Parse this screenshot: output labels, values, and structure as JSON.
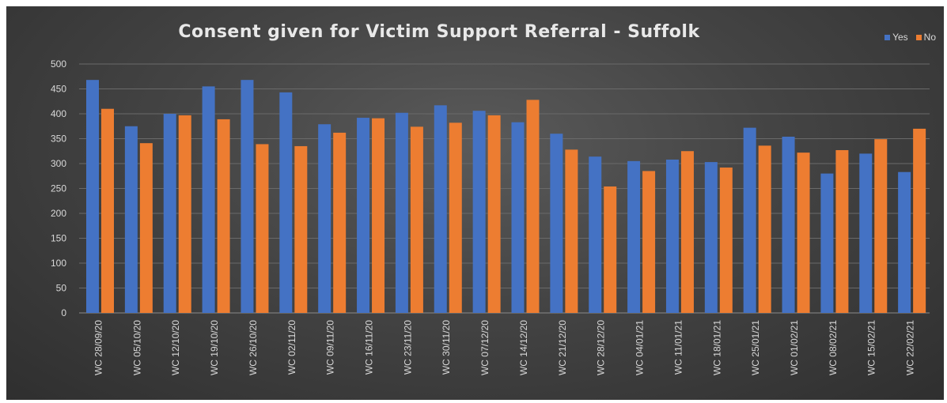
{
  "chart_data": {
    "type": "bar",
    "title": "Consent given for Victim Support Referral - Suffolk",
    "xlabel": "",
    "ylabel": "",
    "ylim": [
      0,
      500
    ],
    "yticks": [
      0,
      50,
      100,
      150,
      200,
      250,
      300,
      350,
      400,
      450,
      500
    ],
    "grid": true,
    "legend_position": "top-right",
    "categories": [
      "WC 28/09/20",
      "WC 05/10/20",
      "WC 12/10/20",
      "WC 19/10/20",
      "WC 26/10/20",
      "WC 02/11/20",
      "WC 09/11/20",
      "WC 16/11/20",
      "WC 23/11/20",
      "WC 30/11/20",
      "WC 07/12/20",
      "WC 14/12/20",
      "WC 21/12/20",
      "WC 28/12/20",
      "WC 04/01/21",
      "WC 11/01/21",
      "WC 18/01/21",
      "WC 25/01/21",
      "WC 01/02/21",
      "WC 08/02/21",
      "WC 15/02/21",
      "WC 22/02/21"
    ],
    "series": [
      {
        "name": "Yes",
        "color": "#4472c4",
        "values": [
          468,
          375,
          400,
          455,
          468,
          443,
          379,
          392,
          402,
          417,
          406,
          383,
          360,
          314,
          305,
          308,
          303,
          372,
          354,
          280,
          320,
          283
        ]
      },
      {
        "name": "No",
        "color": "#ed7d31",
        "values": [
          410,
          341,
          397,
          389,
          339,
          335,
          362,
          391,
          374,
          382,
          397,
          428,
          328,
          254,
          285,
          325,
          292,
          336,
          322,
          327,
          349,
          370
        ]
      }
    ]
  }
}
